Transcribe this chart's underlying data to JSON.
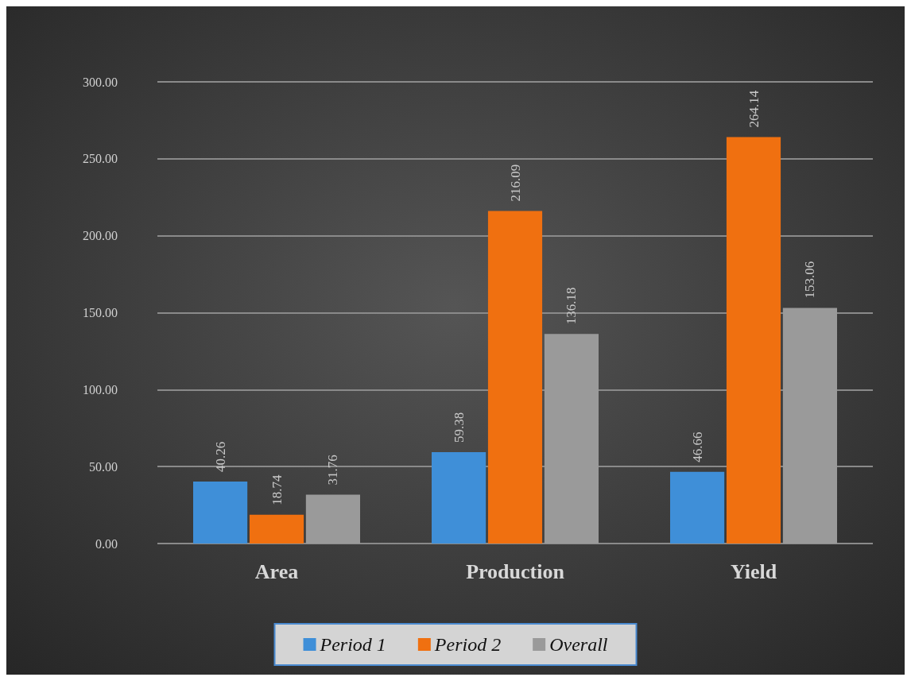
{
  "chart_data": {
    "type": "bar",
    "categories": [
      "Area",
      "Production",
      "Yield"
    ],
    "series": [
      {
        "name": "Period 1",
        "color": "#3f8fd8",
        "values": [
          40.26,
          59.38,
          46.66
        ]
      },
      {
        "name": "Period 2",
        "color": "#f07010",
        "values": [
          18.74,
          216.09,
          264.14
        ]
      },
      {
        "name": "Overall",
        "color": "#9a9a9a",
        "values": [
          31.76,
          136.18,
          153.06
        ]
      }
    ],
    "ylim": [
      0,
      300
    ],
    "yticks": [
      {
        "value": 0,
        "label": "0.00"
      },
      {
        "value": 50,
        "label": "50.00"
      },
      {
        "value": 100,
        "label": "100.00"
      },
      {
        "value": 150,
        "label": "150.00"
      },
      {
        "value": 200,
        "label": "200.00"
      },
      {
        "value": 250,
        "label": "250.00"
      },
      {
        "value": 300,
        "label": "300.00"
      }
    ],
    "grid": "y",
    "legend": "bottom",
    "data_labels": true
  }
}
